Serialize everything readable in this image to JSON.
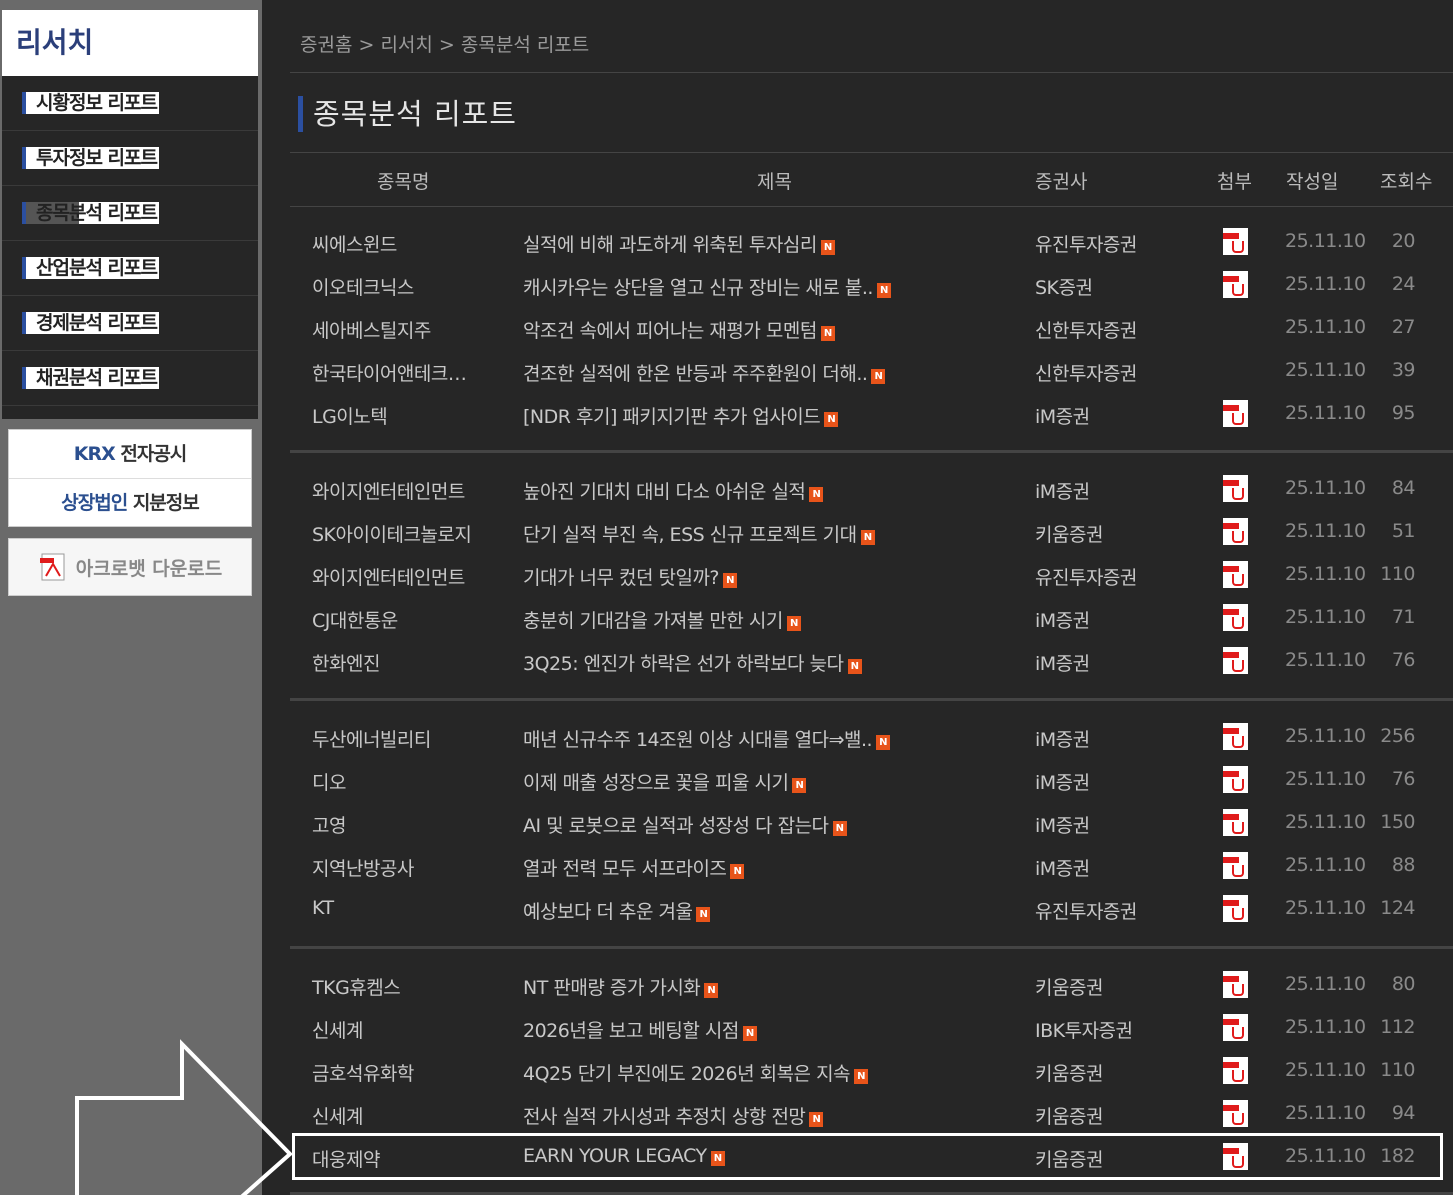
{
  "sidebar": {
    "title": "리서치",
    "items": [
      {
        "label": "시황정보 리포트"
      },
      {
        "label": "투자정보 리포트"
      },
      {
        "label": "종목분석 리포트",
        "active": true
      },
      {
        "label": "산업분석 리포트"
      },
      {
        "label": "경제분석 리포트"
      },
      {
        "label": "채권분석 리포트"
      }
    ],
    "links": {
      "krx_prefix": "KRX",
      "krx_suffix": "전자공시",
      "stake_prefix": "상장법인",
      "stake_suffix": "지분정보"
    },
    "acrobat": "아크로뱃 다운로드"
  },
  "breadcrumb": "증권홈 > 리서치 > 종목분석 리포트",
  "page_title": "종목분석 리포트",
  "table": {
    "headers": [
      "종목명",
      "제목",
      "증권사",
      "첨부",
      "작성일",
      "조회수"
    ],
    "new_badge": "N",
    "colors": {
      "new_badge": "#e8541a",
      "pdf": "#e01b1b",
      "accent": "#2b4fa0"
    },
    "rows": [
      {
        "name": "씨에스윈드",
        "title": "실적에 비해 과도하게 위축된 투자심리",
        "broker": "유진투자증권",
        "pdf": true,
        "date": "25.11.10",
        "views": "20"
      },
      {
        "name": "이오테크닉스",
        "title": "캐시카우는 상단을 열고 신규 장비는 새로 붙..",
        "broker": "SK증권",
        "pdf": true,
        "date": "25.11.10",
        "views": "24"
      },
      {
        "name": "세아베스틸지주",
        "title": "악조건 속에서 피어나는 재평가 모멘텀",
        "broker": "신한투자증권",
        "pdf": false,
        "date": "25.11.10",
        "views": "27"
      },
      {
        "name": "한국타이어앤테크…",
        "title": "견조한 실적에 한온 반등과 주주환원이 더해..",
        "broker": "신한투자증권",
        "pdf": false,
        "date": "25.11.10",
        "views": "39"
      },
      {
        "name": "LG이노텍",
        "title": "[NDR 후기] 패키지기판 추가 업사이드",
        "broker": "iM증권",
        "pdf": true,
        "date": "25.11.10",
        "views": "95"
      },
      {
        "name": "와이지엔터테인먼트",
        "title": "높아진 기대치 대비 다소 아쉬운 실적",
        "broker": "iM증권",
        "pdf": true,
        "date": "25.11.10",
        "views": "84"
      },
      {
        "name": "SK아이이테크놀로지",
        "title": "단기 실적 부진 속, ESS 신규 프로젝트 기대",
        "broker": "키움증권",
        "pdf": true,
        "date": "25.11.10",
        "views": "51"
      },
      {
        "name": "와이지엔터테인먼트",
        "title": "기대가 너무 컸던 탓일까?",
        "broker": "유진투자증권",
        "pdf": true,
        "date": "25.11.10",
        "views": "110"
      },
      {
        "name": "CJ대한통운",
        "title": "충분히 기대감을 가져볼 만한 시기",
        "broker": "iM증권",
        "pdf": true,
        "date": "25.11.10",
        "views": "71"
      },
      {
        "name": "한화엔진",
        "title": "3Q25: 엔진가 하락은 선가 하락보다 늦다",
        "broker": "iM증권",
        "pdf": true,
        "date": "25.11.10",
        "views": "76"
      },
      {
        "name": "두산에너빌리티",
        "title": "매년 신규수주 14조원 이상 시대를 열다⇒밸..",
        "broker": "iM증권",
        "pdf": true,
        "date": "25.11.10",
        "views": "256"
      },
      {
        "name": "디오",
        "title": "이제 매출 성장으로 꽃을 피울 시기",
        "broker": "iM증권",
        "pdf": true,
        "date": "25.11.10",
        "views": "76"
      },
      {
        "name": "고영",
        "title": "AI 및 로봇으로 실적과 성장성 다 잡는다",
        "broker": "iM증권",
        "pdf": true,
        "date": "25.11.10",
        "views": "150"
      },
      {
        "name": "지역난방공사",
        "title": "열과 전력 모두 서프라이즈",
        "broker": "iM증권",
        "pdf": true,
        "date": "25.11.10",
        "views": "88"
      },
      {
        "name": "KT",
        "title": "예상보다 더 추운 겨울",
        "broker": "유진투자증권",
        "pdf": true,
        "date": "25.11.10",
        "views": "124"
      },
      {
        "name": "TKG휴켐스",
        "title": "NT 판매량 증가 가시화",
        "broker": "키움증권",
        "pdf": true,
        "date": "25.11.10",
        "views": "80"
      },
      {
        "name": "신세계",
        "title": "2026년을 보고 베팅할 시점",
        "broker": "IBK투자증권",
        "pdf": true,
        "date": "25.11.10",
        "views": "112"
      },
      {
        "name": "금호석유화학",
        "title": "4Q25 단기 부진에도 2026년 회복은 지속",
        "broker": "키움증권",
        "pdf": true,
        "date": "25.11.10",
        "views": "110"
      },
      {
        "name": "신세계",
        "title": "전사 실적 가시성과 추정치 상향 전망",
        "broker": "키움증권",
        "pdf": true,
        "date": "25.11.10",
        "views": "94"
      },
      {
        "name": "대웅제약",
        "title": "EARN YOUR LEGACY",
        "broker": "키움증권",
        "pdf": true,
        "date": "25.11.10",
        "views": "182",
        "highlighted": true
      }
    ]
  }
}
